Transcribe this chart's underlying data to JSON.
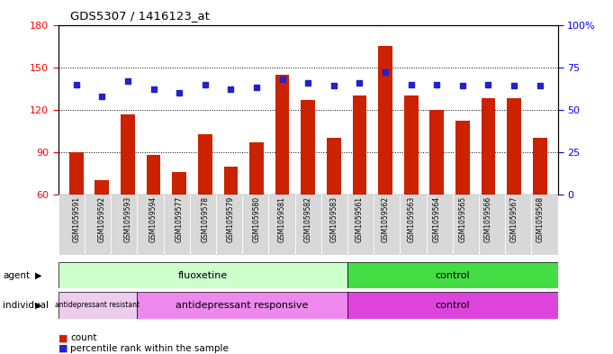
{
  "title": "GDS5307 / 1416123_at",
  "samples": [
    "GSM1059591",
    "GSM1059592",
    "GSM1059593",
    "GSM1059594",
    "GSM1059577",
    "GSM1059578",
    "GSM1059579",
    "GSM1059580",
    "GSM1059581",
    "GSM1059582",
    "GSM1059583",
    "GSM1059561",
    "GSM1059562",
    "GSM1059563",
    "GSM1059564",
    "GSM1059565",
    "GSM1059566",
    "GSM1059567",
    "GSM1059568"
  ],
  "counts": [
    90,
    70,
    117,
    88,
    76,
    103,
    80,
    97,
    145,
    127,
    100,
    130,
    165,
    130,
    120,
    112,
    128,
    128,
    100
  ],
  "percentiles": [
    65,
    58,
    67,
    62,
    60,
    65,
    62,
    63,
    68,
    66,
    64,
    66,
    72,
    65,
    65,
    64,
    65,
    64,
    64
  ],
  "bar_color": "#cc2200",
  "dot_color": "#2222cc",
  "ylim_left": [
    60,
    180
  ],
  "ylim_right": [
    0,
    100
  ],
  "yticks_left": [
    60,
    90,
    120,
    150,
    180
  ],
  "yticks_right": [
    0,
    25,
    50,
    75,
    100
  ],
  "agent_groups": [
    {
      "label": "fluoxetine",
      "start": 0,
      "end": 11,
      "color": "#ccffcc"
    },
    {
      "label": "control",
      "start": 11,
      "end": 19,
      "color": "#44dd44"
    }
  ],
  "individual_groups": [
    {
      "label": "antidepressant resistant",
      "start": 0,
      "end": 3,
      "color": "#eeccee"
    },
    {
      "label": "antidepressant responsive",
      "start": 3,
      "end": 11,
      "color": "#ee88ee"
    },
    {
      "label": "control",
      "start": 11,
      "end": 19,
      "color": "#dd44dd"
    }
  ],
  "legend_count_color": "#cc2200",
  "legend_dot_color": "#2222cc",
  "sample_box_color": "#d8d8d8",
  "plot_bg_color": "#ffffff"
}
